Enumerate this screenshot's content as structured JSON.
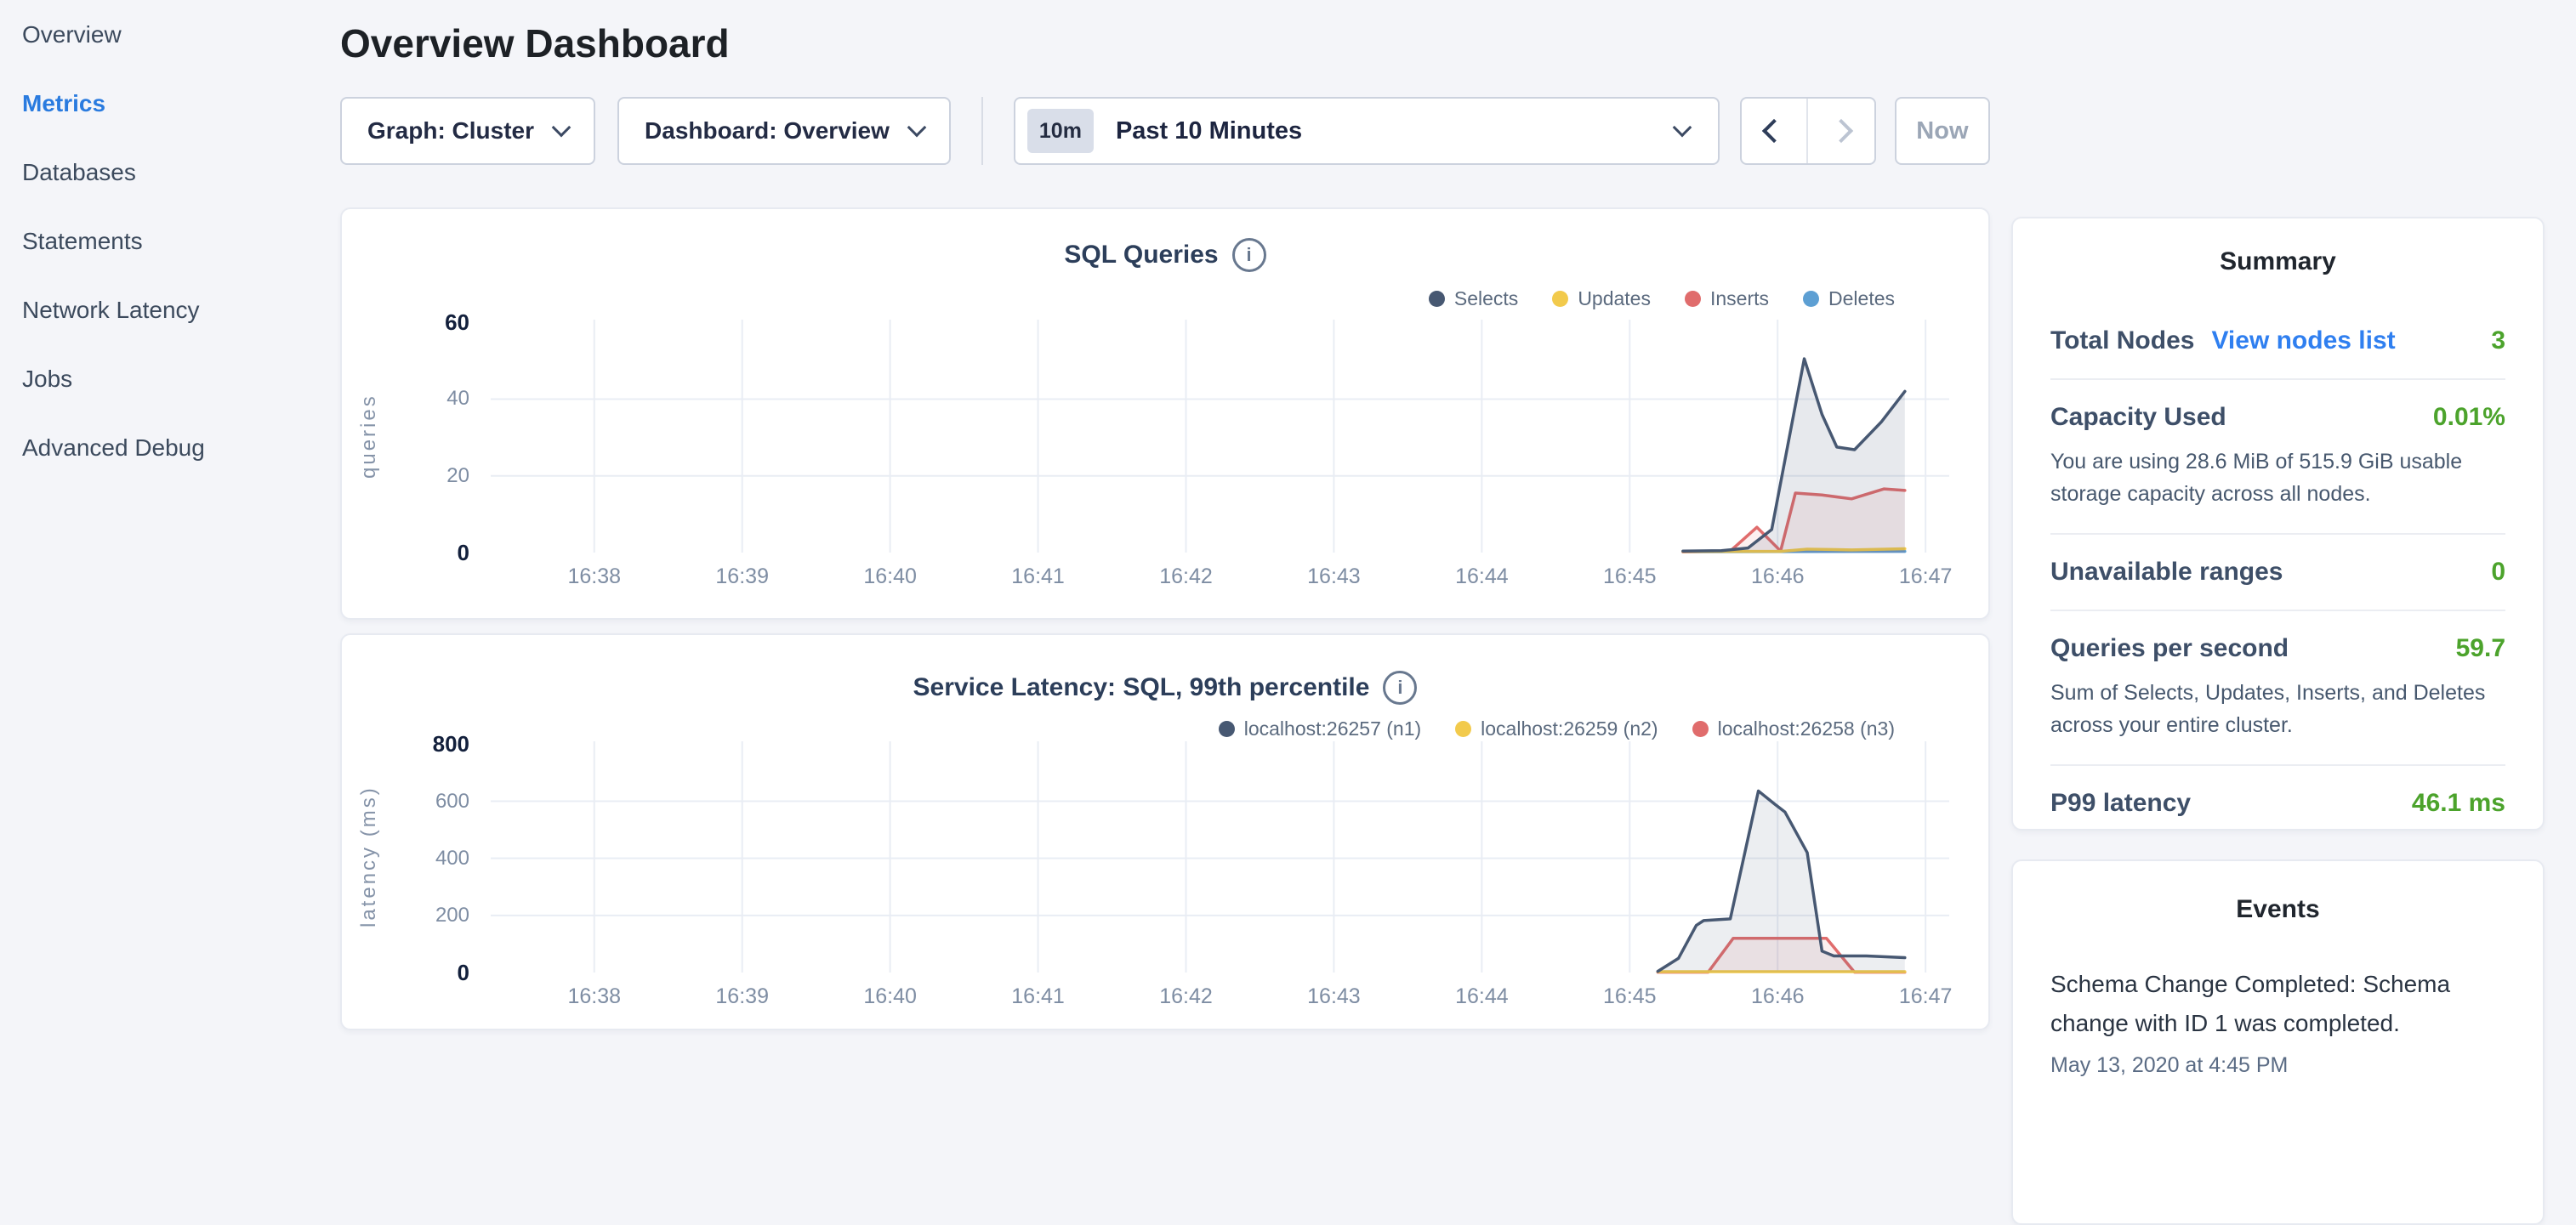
{
  "sidebar": {
    "items": [
      {
        "label": "Overview",
        "active": false
      },
      {
        "label": "Metrics",
        "active": true
      },
      {
        "label": "Databases",
        "active": false
      },
      {
        "label": "Statements",
        "active": false
      },
      {
        "label": "Network Latency",
        "active": false
      },
      {
        "label": "Jobs",
        "active": false
      },
      {
        "label": "Advanced Debug",
        "active": false
      }
    ]
  },
  "header": {
    "title": "Overview Dashboard"
  },
  "controls": {
    "graph_label": "Graph: Cluster",
    "dashboard_label": "Dashboard: Overview",
    "time_range_badge": "10m",
    "time_range_label": "Past 10 Minutes",
    "now_label": "Now"
  },
  "summary": {
    "title": "Summary",
    "rows": [
      {
        "label": "Total Nodes",
        "link": "View nodes list",
        "value": "3"
      },
      {
        "label": "Capacity Used",
        "value": "0.01%",
        "desc": "You are using 28.6 MiB of 515.9 GiB usable storage capacity across all nodes."
      },
      {
        "label": "Unavailable ranges",
        "value": "0"
      },
      {
        "label": "Queries per second",
        "value": "59.7",
        "desc": "Sum of Selects, Updates, Inserts, and Deletes across your entire cluster."
      },
      {
        "label": "P99 latency",
        "value": "46.1 ms"
      }
    ]
  },
  "events": {
    "title": "Events",
    "items": [
      {
        "text": "Schema Change Completed: Schema change with ID 1 was completed.",
        "time": "May 13, 2020 at 4:45 PM"
      }
    ]
  },
  "colors": {
    "accent_blue": "#2f7ff0",
    "active_nav_blue": "#2a7bdf",
    "value_green": "#4ca32c",
    "series_navy": "#475872",
    "series_yellow": "#f2ca4c",
    "series_red": "#e06c6c",
    "series_blue": "#5d9fd3"
  },
  "chart_data": [
    {
      "type": "line",
      "title": "SQL Queries",
      "ylabel": "queries",
      "xlabel": "",
      "yticks": [
        0,
        20,
        40,
        60
      ],
      "ylim": [
        0,
        60.7
      ],
      "xlim": [
        37.3,
        47.16
      ],
      "grid": true,
      "legend_position": "top-right",
      "xticks": [
        {
          "t": 38,
          "label": "16:38"
        },
        {
          "t": 39,
          "label": "16:39"
        },
        {
          "t": 40,
          "label": "16:40"
        },
        {
          "t": 41,
          "label": "16:41"
        },
        {
          "t": 42,
          "label": "16:42"
        },
        {
          "t": 43,
          "label": "16:43"
        },
        {
          "t": 44,
          "label": "16:44"
        },
        {
          "t": 45,
          "label": "16:45"
        },
        {
          "t": 46,
          "label": "16:46"
        },
        {
          "t": 47,
          "label": "16:47"
        }
      ],
      "series": [
        {
          "name": "Selects",
          "color": "#475872",
          "fill": "rgba(71,88,114,0.13)",
          "points": [
            [
              45.36,
              0.4
            ],
            [
              45.62,
              0.5
            ],
            [
              45.8,
              1.2
            ],
            [
              45.96,
              6
            ],
            [
              46.18,
              50.5
            ],
            [
              46.3,
              36
            ],
            [
              46.4,
              27.5
            ],
            [
              46.52,
              26.8
            ],
            [
              46.7,
              34
            ],
            [
              46.86,
              42
            ]
          ]
        },
        {
          "name": "Updates",
          "color": "#f2ca4c",
          "fill": "none",
          "points": [
            [
              45.36,
              0.3
            ],
            [
              46.02,
              0.3
            ],
            [
              46.2,
              0.9
            ],
            [
              46.5,
              0.7
            ],
            [
              46.86,
              1
            ]
          ]
        },
        {
          "name": "Inserts",
          "color": "#e06c6c",
          "fill": "rgba(224,108,108,0.10)",
          "points": [
            [
              45.36,
              0.2
            ],
            [
              45.68,
              0.4
            ],
            [
              45.86,
              6.6
            ],
            [
              46.02,
              0.4
            ],
            [
              46.12,
              15.5
            ],
            [
              46.3,
              15
            ],
            [
              46.5,
              14
            ],
            [
              46.72,
              16.6
            ],
            [
              46.86,
              16.2
            ]
          ]
        },
        {
          "name": "Deletes",
          "color": "#5d9fd3",
          "fill": "none",
          "points": [
            [
              45.36,
              0.2
            ],
            [
              46.86,
              0.3
            ]
          ]
        }
      ]
    },
    {
      "type": "line",
      "title": "Service Latency: SQL, 99th percentile",
      "ylabel": "latency (ms)",
      "xlabel": "",
      "yticks": [
        0,
        200,
        400,
        600,
        800
      ],
      "ylim": [
        0,
        810
      ],
      "xlim": [
        37.3,
        47.16
      ],
      "grid": true,
      "legend_position": "top-right",
      "xticks": [
        {
          "t": 38,
          "label": "16:38"
        },
        {
          "t": 39,
          "label": "16:39"
        },
        {
          "t": 40,
          "label": "16:40"
        },
        {
          "t": 41,
          "label": "16:41"
        },
        {
          "t": 42,
          "label": "16:42"
        },
        {
          "t": 43,
          "label": "16:43"
        },
        {
          "t": 44,
          "label": "16:44"
        },
        {
          "t": 45,
          "label": "16:45"
        },
        {
          "t": 46,
          "label": "16:46"
        },
        {
          "t": 47,
          "label": "16:47"
        }
      ],
      "series": [
        {
          "name": "localhost:26257 (n1)",
          "color": "#475872",
          "fill": "rgba(71,88,114,0.10)",
          "points": [
            [
              45.19,
              4
            ],
            [
              45.33,
              50
            ],
            [
              45.45,
              165
            ],
            [
              45.5,
              182
            ],
            [
              45.68,
              188
            ],
            [
              45.87,
              636
            ],
            [
              45.98,
              590
            ],
            [
              46.05,
              562
            ],
            [
              46.2,
              420
            ],
            [
              46.3,
              75
            ],
            [
              46.38,
              58
            ],
            [
              46.6,
              58
            ],
            [
              46.86,
              52
            ]
          ]
        },
        {
          "name": "localhost:26259 (n2)",
          "color": "#f2ca4c",
          "fill": "none",
          "points": [
            [
              45.19,
              3
            ],
            [
              46.86,
              3
            ]
          ]
        },
        {
          "name": "localhost:26258 (n3)",
          "color": "#e06c6c",
          "fill": "rgba(224,108,108,0.10)",
          "points": [
            [
              45.19,
              1
            ],
            [
              45.53,
              1
            ],
            [
              45.7,
              120
            ],
            [
              46.33,
              120
            ],
            [
              46.52,
              1
            ],
            [
              46.86,
              1
            ]
          ]
        }
      ]
    }
  ]
}
